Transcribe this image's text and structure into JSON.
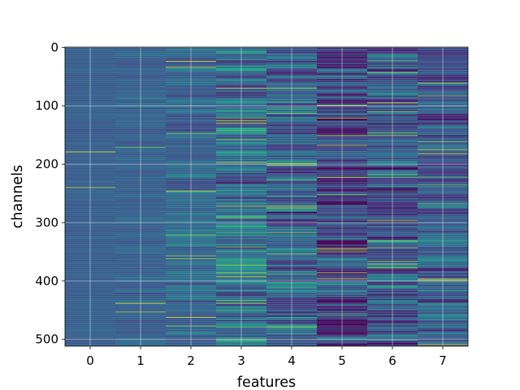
{
  "chart_data": {
    "type": "heatmap",
    "title": "",
    "xlabel": "features",
    "ylabel": "channels",
    "x_categories": [
      "0",
      "1",
      "2",
      "3",
      "4",
      "5",
      "6",
      "7"
    ],
    "y_ticks": [
      0,
      100,
      200,
      300,
      400,
      500
    ],
    "y_range": [
      0,
      511
    ],
    "n_channels": 512,
    "y_axis_inverted": true,
    "grid": true,
    "colormap": "viridis",
    "colorbar": false,
    "legend": "none",
    "column_profiles": [
      {
        "feature": "0",
        "mean": 0.3,
        "spread": 0.02
      },
      {
        "feature": "1",
        "mean": 0.31,
        "spread": 0.04
      },
      {
        "feature": "2",
        "mean": 0.33,
        "spread": 0.08
      },
      {
        "feature": "3",
        "mean": 0.36,
        "spread": 0.16
      },
      {
        "feature": "4",
        "mean": 0.3,
        "spread": 0.15
      },
      {
        "feature": "5",
        "mean": 0.22,
        "spread": 0.16
      },
      {
        "feature": "6",
        "mean": 0.26,
        "spread": 0.17
      },
      {
        "feature": "7",
        "mean": 0.29,
        "spread": 0.12
      }
    ]
  }
}
